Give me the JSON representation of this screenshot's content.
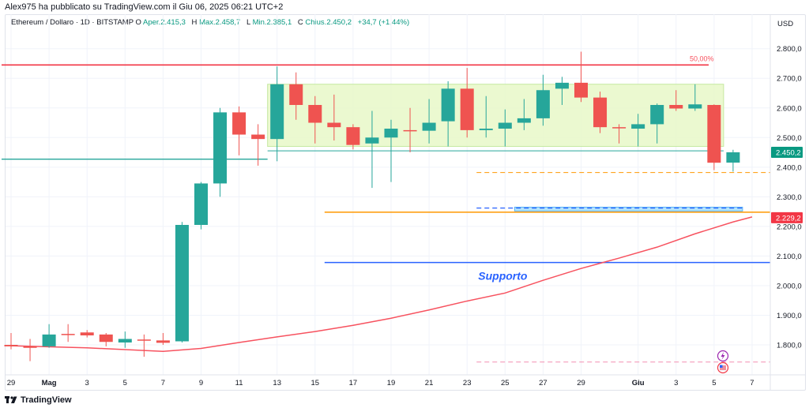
{
  "publisher_line": "Alex975 ha pubblicato su TradingView.com il Giu 06, 2025 06:21 UTC+2",
  "legend": {
    "symbol": "Ethereum / Dollaro · 1D · BITSTAMP",
    "open_label": "O",
    "open_value": "Aper.2.415,3",
    "high_label": "H",
    "high_value": "Max.2.458,7",
    "low_label": "L",
    "low_value": "Min.2.385,1",
    "close_label": "C",
    "close_value": "Chius.2.450,2",
    "change_value": "+34,7 (+1,44%)"
  },
  "footer_brand": "TradingView",
  "colors": {
    "up": "#26a69a",
    "down": "#ef5350",
    "fib_line": "#f23645",
    "ma_line": "#f7525f",
    "support_line": "#2962ff",
    "orange_line": "#ff9800",
    "range_box": "#e8f8c8",
    "price_box": "#089981",
    "level_box": "#f23645",
    "grid": "#f0f3fa",
    "axis_text": "#131722"
  },
  "chart_data": {
    "type": "candlestick",
    "currency_label": "USD",
    "ylim": [
      1700,
      2860
    ],
    "y_ticks": [
      1800,
      1900,
      2000,
      2100,
      2200,
      2300,
      2400,
      2500,
      2600,
      2700,
      2800
    ],
    "y_tick_labels": [
      "1.800,0",
      "1.900,0",
      "2.000,0",
      "2.100,0",
      "2.200,0",
      "2.300,0",
      "2.400,0",
      "2.500,0",
      "2.600,0",
      "2.700,0",
      "2.800,0"
    ],
    "x_ticks": [
      {
        "i": 0,
        "label": "29"
      },
      {
        "i": 2,
        "label": "Mag"
      },
      {
        "i": 4,
        "label": "3"
      },
      {
        "i": 6,
        "label": "5"
      },
      {
        "i": 8,
        "label": "7"
      },
      {
        "i": 10,
        "label": "9"
      },
      {
        "i": 12,
        "label": "11"
      },
      {
        "i": 14,
        "label": "13"
      },
      {
        "i": 16,
        "label": "15"
      },
      {
        "i": 18,
        "label": "17"
      },
      {
        "i": 20,
        "label": "19"
      },
      {
        "i": 22,
        "label": "21"
      },
      {
        "i": 24,
        "label": "23"
      },
      {
        "i": 26,
        "label": "25"
      },
      {
        "i": 28,
        "label": "27"
      },
      {
        "i": 30,
        "label": "29"
      },
      {
        "i": 33,
        "label": "Giu"
      },
      {
        "i": 35,
        "label": "3"
      },
      {
        "i": 37,
        "label": "5"
      },
      {
        "i": 39,
        "label": "7"
      }
    ],
    "candles": [
      {
        "o": 1800,
        "h": 1840,
        "l": 1785,
        "c": 1795
      },
      {
        "o": 1795,
        "h": 1820,
        "l": 1745,
        "c": 1790
      },
      {
        "o": 1795,
        "h": 1870,
        "l": 1790,
        "c": 1835
      },
      {
        "o": 1837,
        "h": 1870,
        "l": 1810,
        "c": 1835
      },
      {
        "o": 1842,
        "h": 1850,
        "l": 1825,
        "c": 1832
      },
      {
        "o": 1835,
        "h": 1840,
        "l": 1795,
        "c": 1810
      },
      {
        "o": 1808,
        "h": 1845,
        "l": 1790,
        "c": 1820
      },
      {
        "o": 1818,
        "h": 1835,
        "l": 1760,
        "c": 1815
      },
      {
        "o": 1815,
        "h": 1840,
        "l": 1800,
        "c": 1807
      },
      {
        "o": 1812,
        "h": 2215,
        "l": 1808,
        "c": 2205
      },
      {
        "o": 2205,
        "h": 2350,
        "l": 2190,
        "c": 2345
      },
      {
        "o": 2345,
        "h": 2600,
        "l": 2300,
        "c": 2585
      },
      {
        "o": 2585,
        "h": 2605,
        "l": 2440,
        "c": 2510
      },
      {
        "o": 2510,
        "h": 2545,
        "l": 2405,
        "c": 2495
      },
      {
        "o": 2495,
        "h": 2740,
        "l": 2420,
        "c": 2680
      },
      {
        "o": 2680,
        "h": 2720,
        "l": 2560,
        "c": 2610
      },
      {
        "o": 2610,
        "h": 2640,
        "l": 2480,
        "c": 2550
      },
      {
        "o": 2550,
        "h": 2645,
        "l": 2490,
        "c": 2535
      },
      {
        "o": 2535,
        "h": 2545,
        "l": 2460,
        "c": 2475
      },
      {
        "o": 2480,
        "h": 2590,
        "l": 2330,
        "c": 2500
      },
      {
        "o": 2500,
        "h": 2560,
        "l": 2350,
        "c": 2530
      },
      {
        "o": 2525,
        "h": 2600,
        "l": 2450,
        "c": 2523
      },
      {
        "o": 2523,
        "h": 2630,
        "l": 2480,
        "c": 2550
      },
      {
        "o": 2555,
        "h": 2690,
        "l": 2470,
        "c": 2665
      },
      {
        "o": 2665,
        "h": 2735,
        "l": 2500,
        "c": 2525
      },
      {
        "o": 2525,
        "h": 2640,
        "l": 2500,
        "c": 2530
      },
      {
        "o": 2530,
        "h": 2595,
        "l": 2470,
        "c": 2550
      },
      {
        "o": 2550,
        "h": 2630,
        "l": 2525,
        "c": 2565
      },
      {
        "o": 2565,
        "h": 2712,
        "l": 2540,
        "c": 2660
      },
      {
        "o": 2665,
        "h": 2705,
        "l": 2610,
        "c": 2685
      },
      {
        "o": 2685,
        "h": 2790,
        "l": 2620,
        "c": 2635
      },
      {
        "o": 2635,
        "h": 2655,
        "l": 2515,
        "c": 2535
      },
      {
        "o": 2535,
        "h": 2545,
        "l": 2480,
        "c": 2533
      },
      {
        "o": 2530,
        "h": 2580,
        "l": 2470,
        "c": 2545
      },
      {
        "o": 2545,
        "h": 2615,
        "l": 2480,
        "c": 2610
      },
      {
        "o": 2610,
        "h": 2660,
        "l": 2590,
        "c": 2598
      },
      {
        "o": 2598,
        "h": 2680,
        "l": 2590,
        "c": 2612
      },
      {
        "o": 2610,
        "h": 2612,
        "l": 2390,
        "c": 2415
      },
      {
        "o": 2415.3,
        "h": 2458.7,
        "l": 2385.1,
        "c": 2450.2
      }
    ],
    "moving_average": [
      {
        "i": 0,
        "v": 1797
      },
      {
        "i": 4,
        "v": 1790
      },
      {
        "i": 8,
        "v": 1778
      },
      {
        "i": 10,
        "v": 1788
      },
      {
        "i": 12,
        "v": 1808
      },
      {
        "i": 14,
        "v": 1827
      },
      {
        "i": 16,
        "v": 1845
      },
      {
        "i": 18,
        "v": 1866
      },
      {
        "i": 20,
        "v": 1890
      },
      {
        "i": 22,
        "v": 1918
      },
      {
        "i": 24,
        "v": 1948
      },
      {
        "i": 26,
        "v": 1975
      },
      {
        "i": 28,
        "v": 2018
      },
      {
        "i": 30,
        "v": 2058
      },
      {
        "i": 32,
        "v": 2093
      },
      {
        "i": 34,
        "v": 2130
      },
      {
        "i": 36,
        "v": 2175
      },
      {
        "i": 38,
        "v": 2215
      },
      {
        "i": 39,
        "v": 2232
      }
    ],
    "fib_level": {
      "value": 2745,
      "label": "50,00%",
      "from_i": -0.5,
      "to_i": 40.5
    },
    "range_box": {
      "from_i": 13.5,
      "to_i": 37.5,
      "top": 2680,
      "bottom": 2470
    },
    "teal_line": {
      "value": 2427,
      "from_i": -0.5,
      "to_i": 13.5
    },
    "range_mid_line": {
      "value": 2455,
      "from_i": 13.5,
      "to_i": 37.5
    },
    "orange_line": {
      "value": 2248,
      "from_i": 16.5,
      "to_i": 40.5
    },
    "orange_dashed": {
      "value": 2382,
      "from_i": 24.5,
      "to_i": 40.5
    },
    "blue_dashed": {
      "value": 2262,
      "from_i": 24.5,
      "to_i": 38.5
    },
    "blue_box": {
      "from_i": 26.5,
      "to_i": 38.5,
      "top": 2265,
      "bottom": 2252
    },
    "support_line": {
      "value": 2078,
      "from_i": 16.5,
      "to_i": 40.5,
      "label": "Supporto",
      "label_i": 25.0,
      "label_v": 2033
    },
    "pink_dashed": {
      "value": 1742,
      "from_i": 24.5,
      "to_i": 40.5
    },
    "price_tags": [
      {
        "value": 2450.2,
        "label": "2.450,2",
        "color": "#089981"
      },
      {
        "value": 2229.2,
        "label": "2.229,2",
        "color": "#f23645"
      }
    ]
  }
}
